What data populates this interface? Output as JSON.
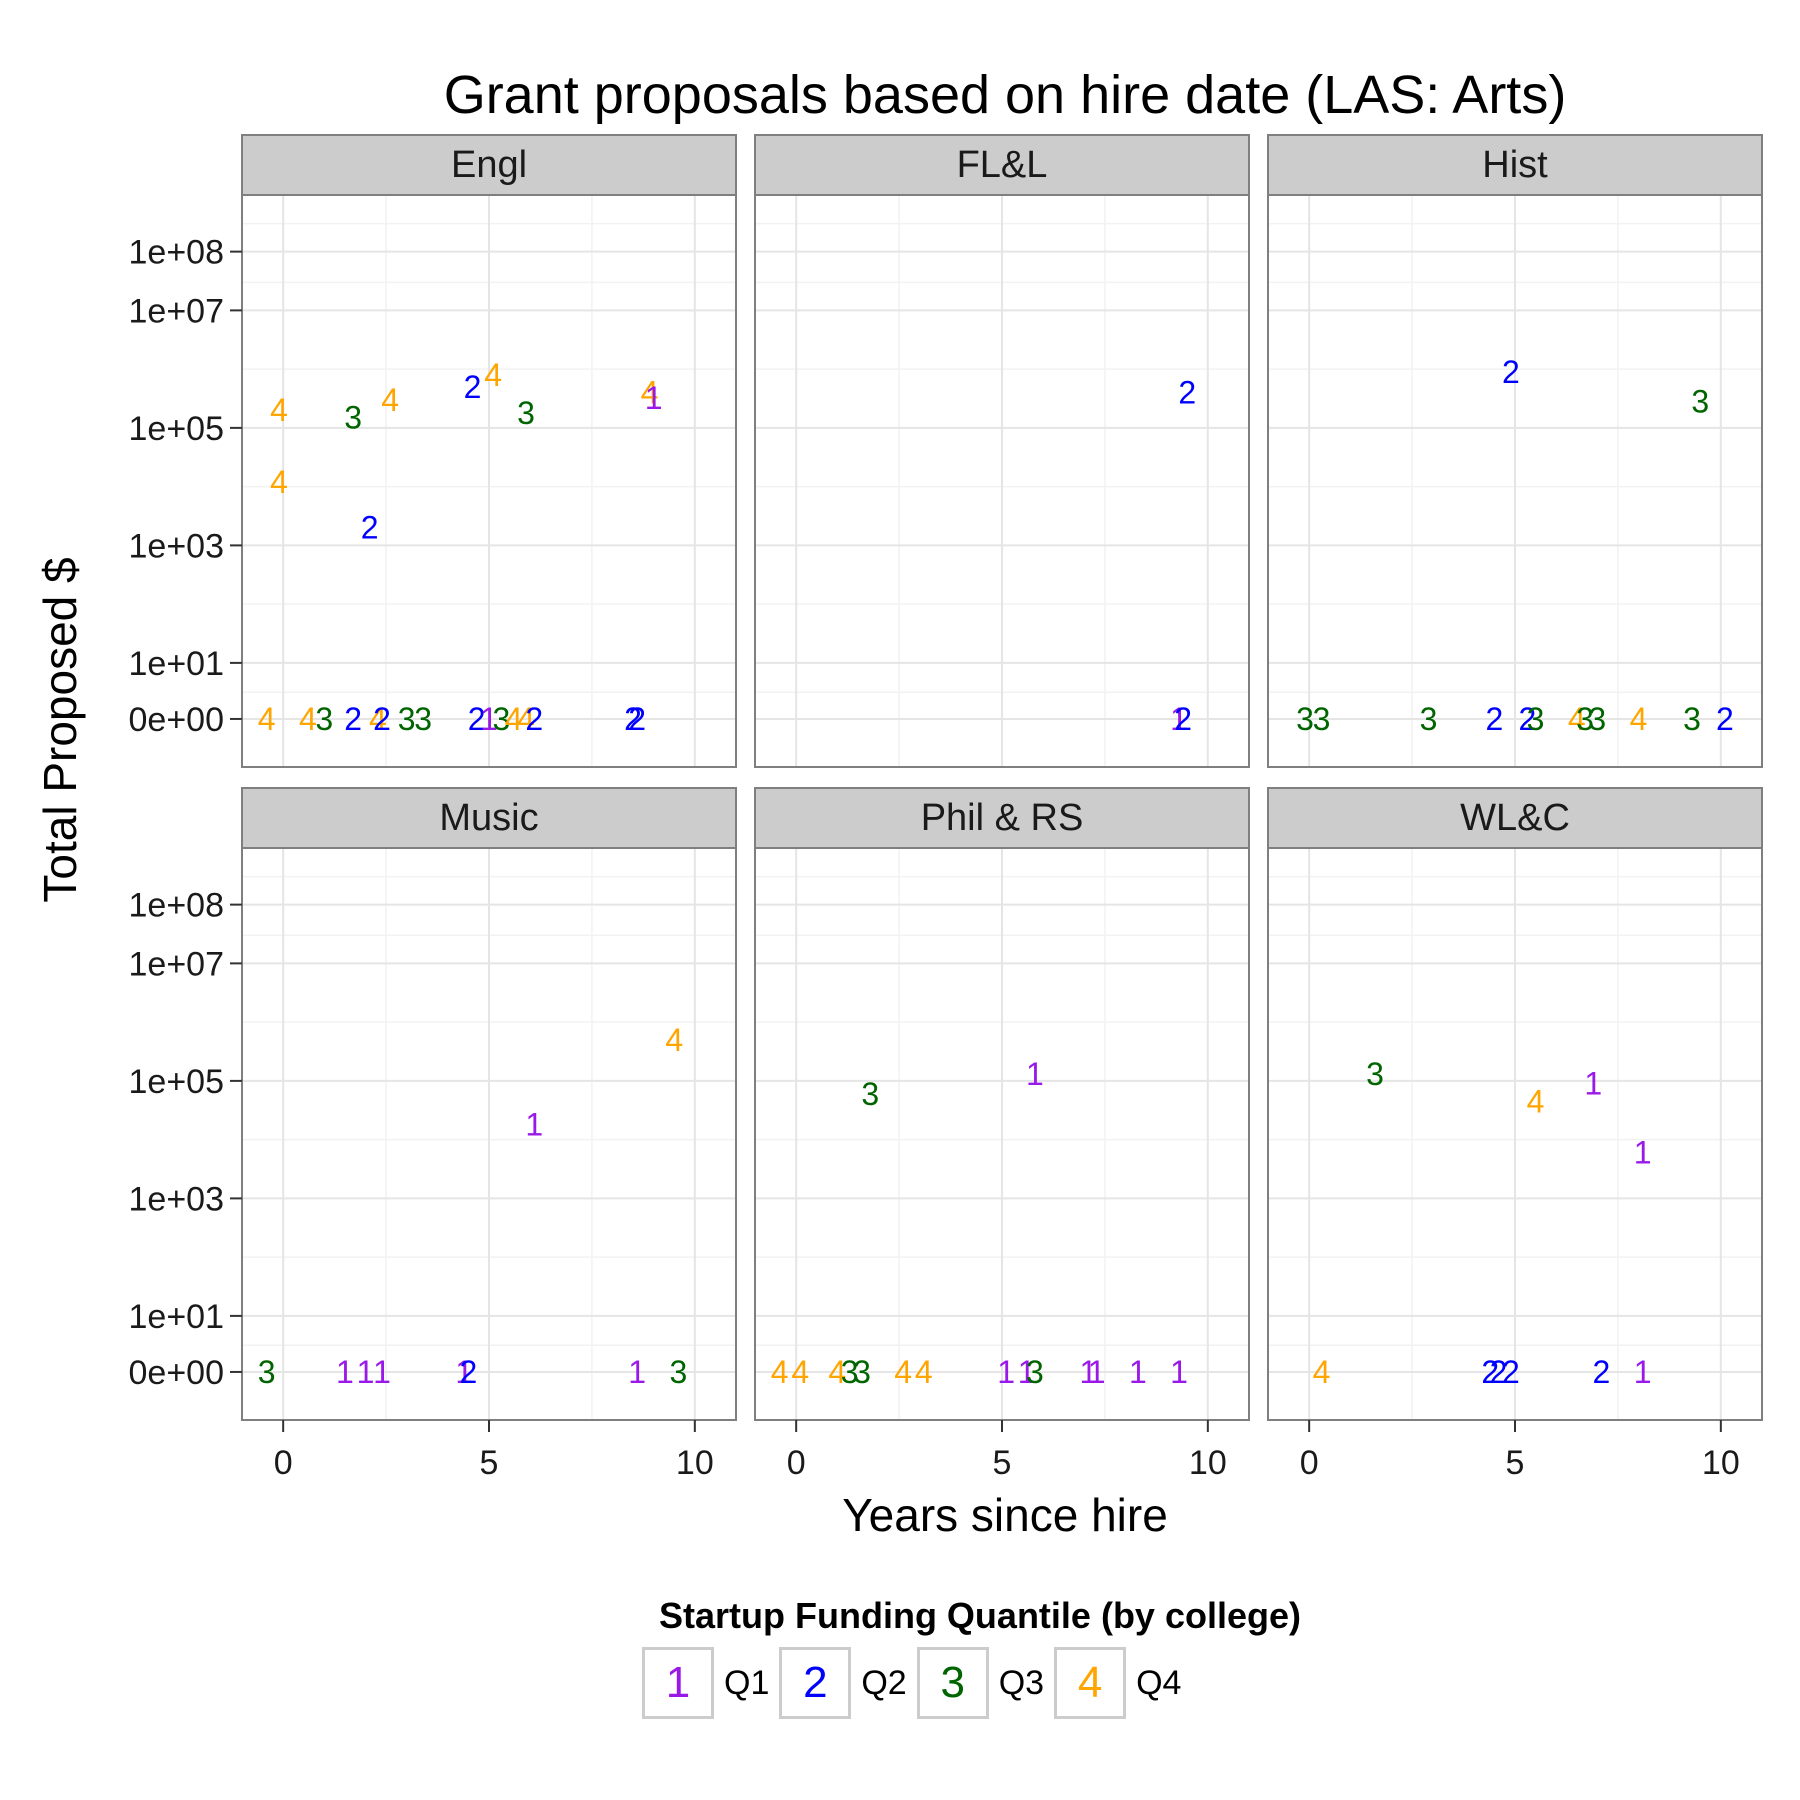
{
  "chart_data": {
    "type": "scatter",
    "title": "Grant proposals based on hire date (LAS: Arts)",
    "xlabel": "Years since hire",
    "ylabel": "Total Proposed $",
    "x_scale": "linear",
    "y_scale": "log (pseudo-log with zero)",
    "xlim": [
      -1,
      11
    ],
    "x_ticks": [
      0,
      5,
      10
    ],
    "y_ticks": [
      0,
      10,
      1000,
      100000,
      10000000,
      100000000
    ],
    "y_tick_labels": [
      "0e+00",
      "1e+01",
      "1e+03",
      "1e+05",
      "1e+07",
      "1e+08"
    ],
    "grid": true,
    "legend": {
      "title": "Startup Funding Quantile (by college)",
      "position": "bottom",
      "items": [
        {
          "key": "1",
          "label": "Q1",
          "color": "#9A19E8"
        },
        {
          "key": "2",
          "label": "Q2",
          "color": "#0000FF"
        },
        {
          "key": "3",
          "label": "Q3",
          "color": "#006400"
        },
        {
          "key": "4",
          "label": "Q4",
          "color": "#FFA500"
        }
      ]
    },
    "panels": [
      {
        "name": "Engl",
        "points": [
          {
            "x": -0.4,
            "y": 0,
            "q": 4
          },
          {
            "x": 0.6,
            "y": 0,
            "q": 4
          },
          {
            "x": 1.0,
            "y": 0,
            "q": 3
          },
          {
            "x": 1.7,
            "y": 0,
            "q": 2
          },
          {
            "x": 2.3,
            "y": 0,
            "q": 4
          },
          {
            "x": 2.4,
            "y": 0,
            "q": 2
          },
          {
            "x": 3.0,
            "y": 0,
            "q": 3
          },
          {
            "x": 3.4,
            "y": 0,
            "q": 3
          },
          {
            "x": 4.7,
            "y": 0,
            "q": 2
          },
          {
            "x": 5.0,
            "y": 0,
            "q": 1
          },
          {
            "x": 5.3,
            "y": 0,
            "q": 3
          },
          {
            "x": 5.6,
            "y": 0,
            "q": 4
          },
          {
            "x": 5.9,
            "y": 0,
            "q": 4
          },
          {
            "x": 6.1,
            "y": 0,
            "q": 2
          },
          {
            "x": 8.5,
            "y": 0,
            "q": 2
          },
          {
            "x": 8.6,
            "y": 0,
            "q": 2
          },
          {
            "x": -0.1,
            "y": 200000,
            "q": 4
          },
          {
            "x": -0.1,
            "y": 12000,
            "q": 4
          },
          {
            "x": 1.7,
            "y": 150000,
            "q": 3
          },
          {
            "x": 2.6,
            "y": 300000,
            "q": 4
          },
          {
            "x": 2.1,
            "y": 2000,
            "q": 2
          },
          {
            "x": 4.6,
            "y": 500000,
            "q": 2
          },
          {
            "x": 5.1,
            "y": 800000,
            "q": 4
          },
          {
            "x": 5.9,
            "y": 180000,
            "q": 3
          },
          {
            "x": 8.9,
            "y": 400000,
            "q": 4
          },
          {
            "x": 9.0,
            "y": 320000,
            "q": 1
          }
        ]
      },
      {
        "name": "FL&L",
        "points": [
          {
            "x": 9.3,
            "y": 0,
            "q": 1
          },
          {
            "x": 9.4,
            "y": 0,
            "q": 2
          },
          {
            "x": 9.5,
            "y": 400000,
            "q": 2
          }
        ]
      },
      {
        "name": "Hist",
        "points": [
          {
            "x": -0.1,
            "y": 0,
            "q": 3
          },
          {
            "x": 0.3,
            "y": 0,
            "q": 3
          },
          {
            "x": 2.9,
            "y": 0,
            "q": 3
          },
          {
            "x": 4.5,
            "y": 0,
            "q": 2
          },
          {
            "x": 5.3,
            "y": 0,
            "q": 2
          },
          {
            "x": 5.5,
            "y": 0,
            "q": 3
          },
          {
            "x": 6.5,
            "y": 0,
            "q": 4
          },
          {
            "x": 6.7,
            "y": 0,
            "q": 3
          },
          {
            "x": 7.0,
            "y": 0,
            "q": 3
          },
          {
            "x": 8.0,
            "y": 0,
            "q": 4
          },
          {
            "x": 9.3,
            "y": 0,
            "q": 3
          },
          {
            "x": 10.1,
            "y": 0,
            "q": 2
          },
          {
            "x": 4.9,
            "y": 900000,
            "q": 2
          },
          {
            "x": 9.5,
            "y": 280000,
            "q": 3
          }
        ]
      },
      {
        "name": "Music",
        "points": [
          {
            "x": -0.4,
            "y": 0,
            "q": 3
          },
          {
            "x": 1.5,
            "y": 0,
            "q": 1
          },
          {
            "x": 2.0,
            "y": 0,
            "q": 1
          },
          {
            "x": 2.4,
            "y": 0,
            "q": 1
          },
          {
            "x": 4.4,
            "y": 0,
            "q": 1
          },
          {
            "x": 4.5,
            "y": 0,
            "q": 2
          },
          {
            "x": 8.6,
            "y": 0,
            "q": 1
          },
          {
            "x": 9.6,
            "y": 0,
            "q": 3
          },
          {
            "x": 6.1,
            "y": 18000,
            "q": 1
          },
          {
            "x": 9.5,
            "y": 500000,
            "q": 4
          }
        ]
      },
      {
        "name": "Phil & RS",
        "points": [
          {
            "x": -0.4,
            "y": 0,
            "q": 4
          },
          {
            "x": 0.1,
            "y": 0,
            "q": 4
          },
          {
            "x": 1.0,
            "y": 0,
            "q": 4
          },
          {
            "x": 1.3,
            "y": 0,
            "q": 3
          },
          {
            "x": 1.6,
            "y": 0,
            "q": 3
          },
          {
            "x": 2.6,
            "y": 0,
            "q": 4
          },
          {
            "x": 3.1,
            "y": 0,
            "q": 4
          },
          {
            "x": 5.1,
            "y": 0,
            "q": 1
          },
          {
            "x": 5.6,
            "y": 0,
            "q": 1
          },
          {
            "x": 5.8,
            "y": 0,
            "q": 3
          },
          {
            "x": 7.1,
            "y": 0,
            "q": 1
          },
          {
            "x": 7.3,
            "y": 0,
            "q": 1
          },
          {
            "x": 8.3,
            "y": 0,
            "q": 1
          },
          {
            "x": 9.3,
            "y": 0,
            "q": 1
          },
          {
            "x": 1.8,
            "y": 60000,
            "q": 3
          },
          {
            "x": 5.8,
            "y": 130000,
            "q": 1
          }
        ]
      },
      {
        "name": "WL&C",
        "points": [
          {
            "x": 0.3,
            "y": 0,
            "q": 4
          },
          {
            "x": 4.4,
            "y": 0,
            "q": 2
          },
          {
            "x": 4.6,
            "y": 0,
            "q": 2
          },
          {
            "x": 4.9,
            "y": 0,
            "q": 2
          },
          {
            "x": 7.1,
            "y": 0,
            "q": 2
          },
          {
            "x": 8.1,
            "y": 0,
            "q": 1
          },
          {
            "x": 1.6,
            "y": 130000,
            "q": 3
          },
          {
            "x": 5.5,
            "y": 45000,
            "q": 4
          },
          {
            "x": 6.9,
            "y": 90000,
            "q": 1
          },
          {
            "x": 8.1,
            "y": 6000,
            "q": 1
          }
        ]
      }
    ]
  }
}
